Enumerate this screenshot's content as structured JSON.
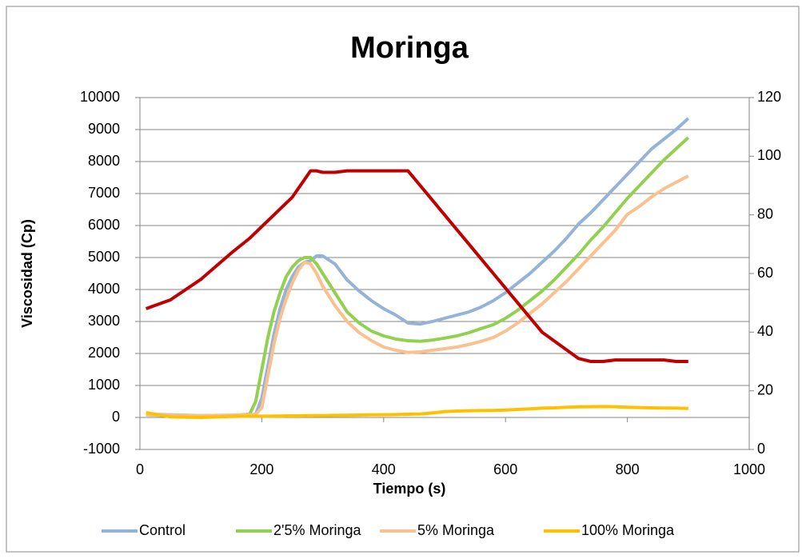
{
  "chart_data": {
    "type": "line",
    "title": "Moringa",
    "x_label": "Tiempo (s)",
    "y_label": "Viscosidad (Cp)",
    "x": [
      10,
      50,
      100,
      150,
      180,
      190,
      200,
      210,
      220,
      230,
      240,
      250,
      260,
      270,
      280,
      290,
      300,
      320,
      340,
      360,
      380,
      400,
      420,
      440,
      460,
      480,
      500,
      520,
      540,
      560,
      580,
      600,
      620,
      640,
      660,
      680,
      700,
      720,
      740,
      760,
      780,
      800,
      820,
      840,
      860,
      880,
      900
    ],
    "xlim": [
      0,
      1000
    ],
    "xticks": [
      0,
      200,
      400,
      600,
      800,
      1000
    ],
    "ylim": [
      -1000,
      10000
    ],
    "yticks": [
      -1000,
      0,
      1000,
      2000,
      3000,
      4000,
      5000,
      6000,
      7000,
      8000,
      9000,
      10000
    ],
    "y2lim": [
      0,
      120
    ],
    "y2ticks": [
      0,
      20,
      40,
      60,
      80,
      100,
      120
    ],
    "grid": true,
    "legend": "bottom",
    "series": [
      {
        "name": "Control",
        "color": "#95b3d7",
        "values": [
          100,
          80,
          60,
          70,
          80,
          100,
          600,
          1600,
          2600,
          3400,
          4000,
          4400,
          4700,
          4850,
          4900,
          5050,
          5050,
          4800,
          4300,
          3950,
          3650,
          3400,
          3200,
          2950,
          2920,
          3000,
          3100,
          3200,
          3300,
          3450,
          3650,
          3900,
          4200,
          4500,
          4850,
          5200,
          5600,
          6050,
          6400,
          6800,
          7200,
          7600,
          8000,
          8400,
          8700,
          9000,
          9350
        ]
      },
      {
        "name": "2'5% Moringa",
        "color": "#92d050",
        "values": [
          80,
          60,
          50,
          60,
          100,
          500,
          1500,
          2500,
          3300,
          3900,
          4400,
          4700,
          4900,
          5000,
          5000,
          4800,
          4500,
          3900,
          3300,
          2950,
          2700,
          2550,
          2450,
          2400,
          2380,
          2420,
          2480,
          2550,
          2650,
          2780,
          2900,
          3100,
          3350,
          3650,
          3950,
          4300,
          4700,
          5100,
          5550,
          5950,
          6400,
          6850,
          7250,
          7650,
          8050,
          8400,
          8750
        ]
      },
      {
        "name": "5% Moringa",
        "color": "#fac090",
        "values": [
          90,
          70,
          60,
          70,
          80,
          100,
          300,
          1300,
          2300,
          3100,
          3700,
          4200,
          4600,
          4850,
          4800,
          4500,
          4100,
          3500,
          3000,
          2650,
          2400,
          2200,
          2100,
          2030,
          2050,
          2100,
          2150,
          2200,
          2280,
          2380,
          2500,
          2700,
          2950,
          3250,
          3550,
          3900,
          4250,
          4650,
          5050,
          5450,
          5850,
          6350,
          6600,
          6900,
          7150,
          7350,
          7550
        ]
      },
      {
        "name": "100% Moringa",
        "color": "#ffc000",
        "values": [
          150,
          20,
          0,
          30,
          40,
          40,
          40,
          40,
          45,
          45,
          50,
          50,
          50,
          55,
          55,
          60,
          60,
          65,
          70,
          75,
          80,
          85,
          90,
          100,
          110,
          140,
          180,
          200,
          210,
          215,
          220,
          230,
          250,
          270,
          290,
          300,
          320,
          330,
          335,
          340,
          335,
          320,
          310,
          300,
          295,
          290,
          280
        ]
      },
      {
        "color": "#c00000",
        "axis": "y2",
        "values": [
          48,
          51,
          58,
          67,
          72,
          74,
          76,
          78,
          80,
          82,
          84,
          86,
          89,
          92,
          95,
          95,
          94.5,
          94.5,
          95,
          95,
          95,
          95,
          95,
          95,
          90,
          85,
          80,
          75,
          70,
          65,
          60,
          55,
          50,
          45,
          40,
          37,
          34,
          31,
          30,
          30,
          30.5,
          30.5,
          30.5,
          30.5,
          30.5,
          30,
          30
        ]
      }
    ]
  }
}
